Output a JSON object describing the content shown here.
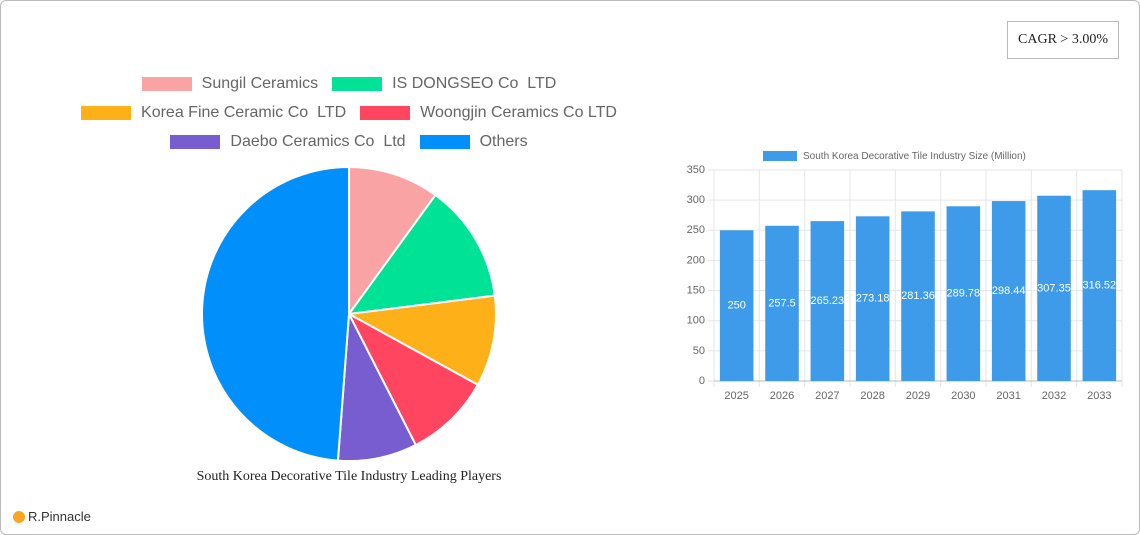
{
  "badge": "CAGR > 3.00%",
  "logo": "R.Pinnacle",
  "chart_data": [
    {
      "type": "pie",
      "title": "South Korea Decorative Tile Industry Leading Players",
      "categories": [
        "Sungil Ceramics",
        "IS DONGSEO Co  LTD",
        "Korea Fine Ceramic Co  LTD",
        "Woongjin Ceramics Co LTD",
        "Daebo Ceramics Co  Ltd",
        "Others"
      ],
      "values": [
        10,
        13,
        10,
        9.5,
        8.7,
        48.8
      ],
      "colors": [
        "#f9a3a4",
        "#00e396",
        "#feb019",
        "#ff4560",
        "#775dd0",
        "#008ffb"
      ]
    },
    {
      "type": "bar",
      "categories": [
        "2025",
        "2026",
        "2027",
        "2028",
        "2029",
        "2030",
        "2031",
        "2032",
        "2033"
      ],
      "series": [
        {
          "name": "South Korea Decorative Tile Industry Size (Million)",
          "color": "#3d9be9",
          "values": [
            250,
            257.5,
            265.23,
            273.18,
            281.36,
            289.78,
            298.44,
            307.35,
            316.52
          ]
        }
      ],
      "ylim": [
        0,
        350
      ],
      "yticks": [
        0,
        50,
        100,
        150,
        200,
        250,
        300,
        350
      ],
      "grid": true
    }
  ]
}
